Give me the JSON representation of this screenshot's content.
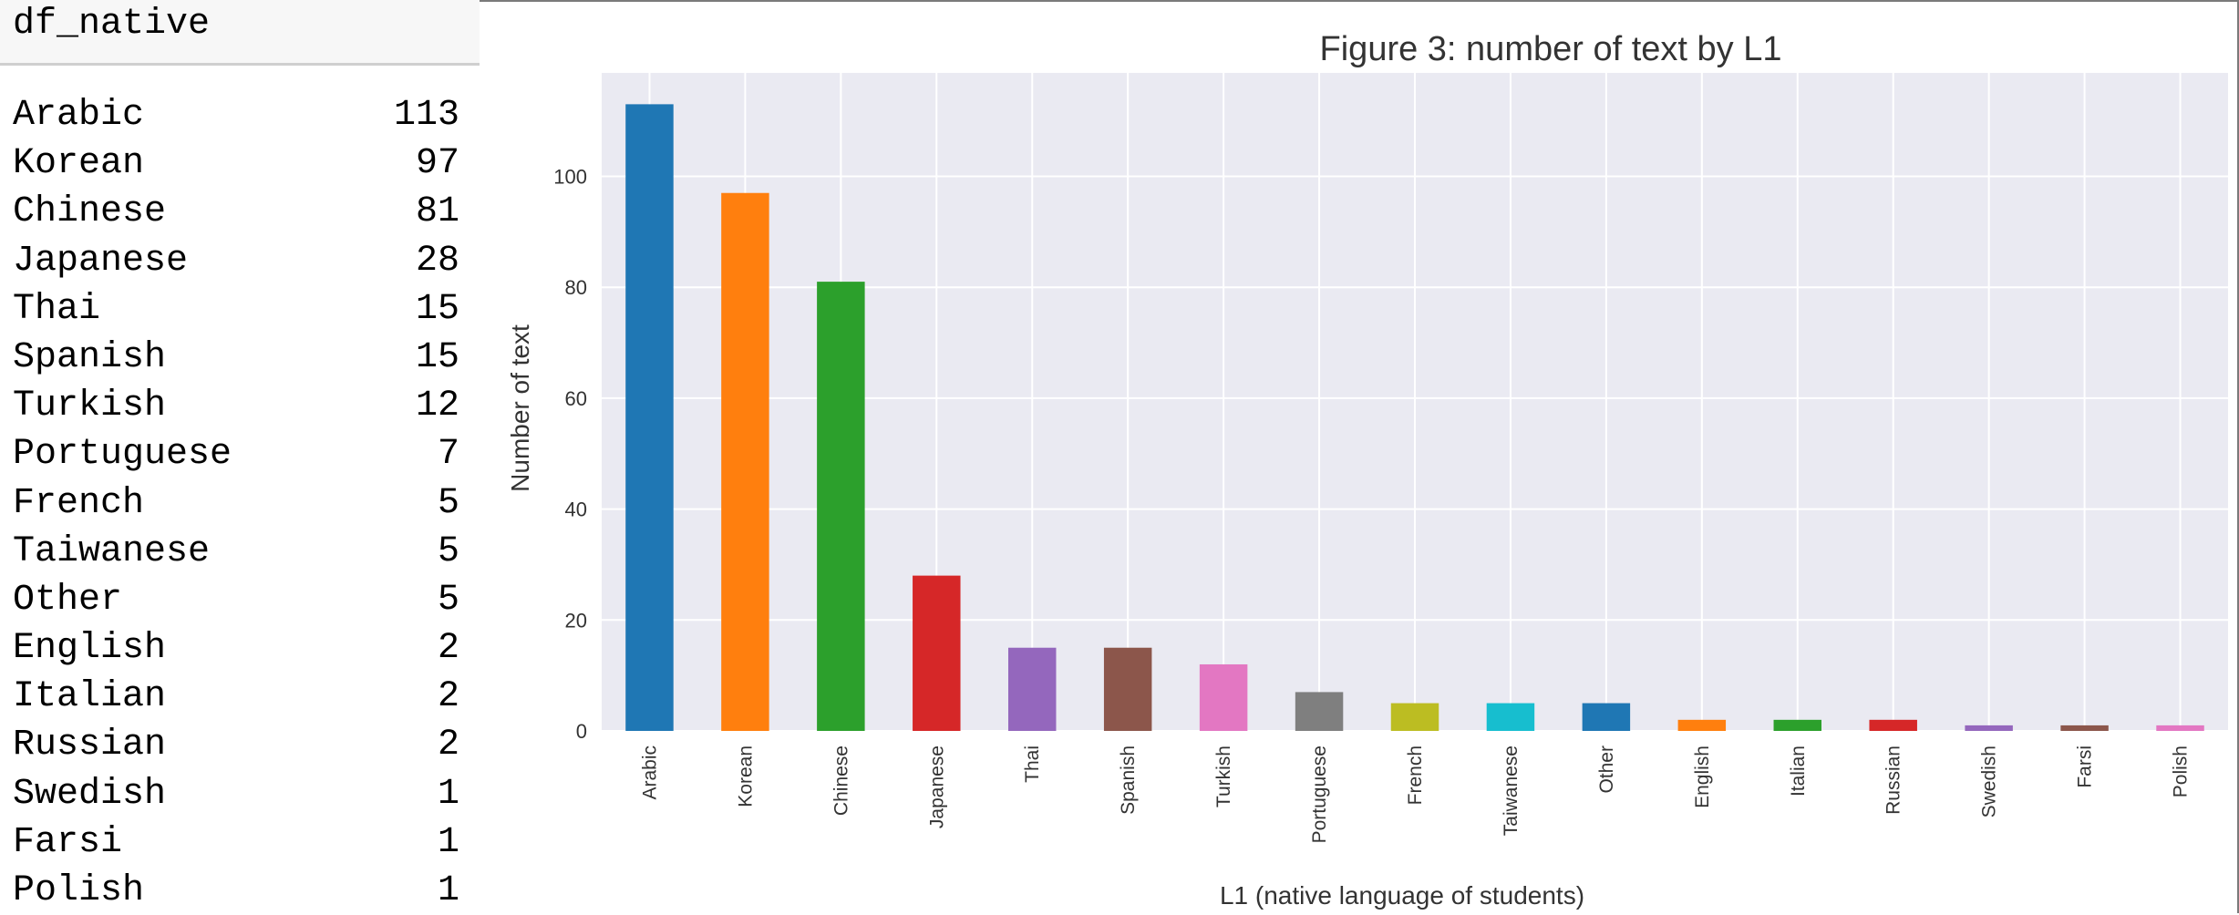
{
  "input_cell": {
    "code": "df_native"
  },
  "output": {
    "rows": [
      {
        "name": "Arabic",
        "value": "113"
      },
      {
        "name": "Korean",
        "value": "97"
      },
      {
        "name": "Chinese",
        "value": "81"
      },
      {
        "name": "Japanese",
        "value": "28"
      },
      {
        "name": "Thai",
        "value": "15"
      },
      {
        "name": "Spanish",
        "value": "15"
      },
      {
        "name": "Turkish",
        "value": "12"
      },
      {
        "name": "Portuguese",
        "value": "7"
      },
      {
        "name": "French",
        "value": "5"
      },
      {
        "name": "Taiwanese",
        "value": "5"
      },
      {
        "name": "Other",
        "value": "5"
      },
      {
        "name": "English",
        "value": "2"
      },
      {
        "name": "Italian",
        "value": "2"
      },
      {
        "name": "Russian",
        "value": "2"
      },
      {
        "name": "Swedish",
        "value": "1"
      },
      {
        "name": "Farsi",
        "value": "1"
      },
      {
        "name": "Polish",
        "value": "1"
      }
    ]
  },
  "chart_data": {
    "type": "bar",
    "title": "Figure 3: number of text by L1",
    "xlabel": "L1 (native language of students)",
    "ylabel": "Number of text",
    "categories": [
      "Arabic",
      "Korean",
      "Chinese",
      "Japanese",
      "Thai",
      "Spanish",
      "Turkish",
      "Portuguese",
      "French",
      "Taiwanese",
      "Other",
      "English",
      "Italian",
      "Russian",
      "Swedish",
      "Farsi",
      "Polish"
    ],
    "values": [
      113,
      97,
      81,
      28,
      15,
      15,
      12,
      7,
      5,
      5,
      5,
      2,
      2,
      2,
      1,
      1,
      1
    ],
    "colors": [
      "#1f77b4",
      "#ff7f0e",
      "#2ca02c",
      "#d62728",
      "#9467bd",
      "#8c564b",
      "#e377c2",
      "#7f7f7f",
      "#bcbd22",
      "#17becf",
      "#1f77b4",
      "#ff7f0e",
      "#2ca02c",
      "#d62728",
      "#9467bd",
      "#8c564b",
      "#e377c2"
    ],
    "yticks": [
      0,
      20,
      40,
      60,
      80,
      100
    ],
    "ylim": [
      0,
      118.65
    ],
    "grid": true,
    "background": "#eaeaf2",
    "legend": "none"
  }
}
